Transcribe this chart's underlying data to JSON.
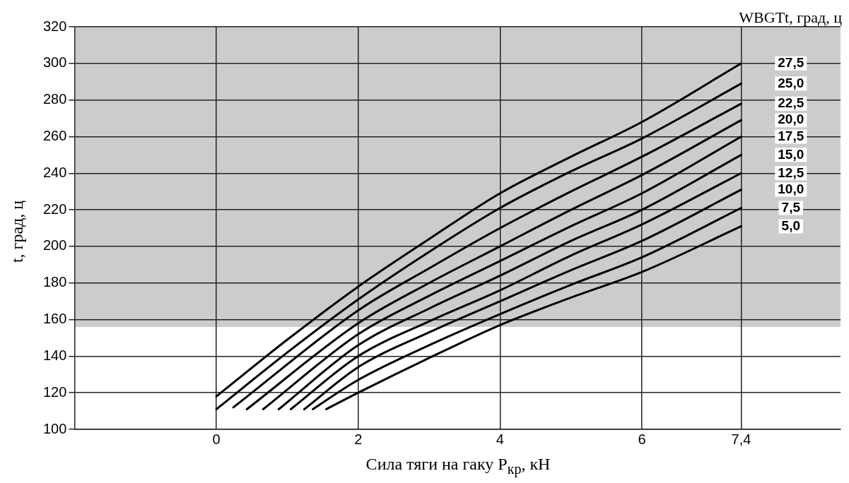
{
  "chart_data": {
    "type": "line",
    "legend_title": "WBGTt, град, ц",
    "xlabel": "Сила тяги на гаку P$_{кр}$, кН",
    "ylabel": "t, град, ц",
    "xlim": [
      -2,
      8.8
    ],
    "xticks": [
      0,
      2,
      4,
      6,
      {
        "value": 7.4,
        "label": "7,4"
      }
    ],
    "ylim": [
      100,
      320
    ],
    "yticks": [
      100,
      120,
      140,
      160,
      180,
      200,
      220,
      240,
      260,
      280,
      300,
      320
    ],
    "grid": true,
    "legend": false,
    "marker": "none",
    "line_style": "solid",
    "bands": [
      {
        "axis": "y",
        "from": 156,
        "to": 320,
        "color": "#cccccc"
      }
    ],
    "series": [
      {
        "name": "27,5",
        "color": "#000000",
        "x": [
          0,
          1,
          2,
          3,
          4,
          5,
          6,
          7.4
        ],
        "values": [
          118,
          149,
          178,
          204,
          229,
          249,
          268,
          300
        ]
      },
      {
        "name": "25,0",
        "color": "#000000",
        "x": [
          0,
          1,
          2,
          3,
          4,
          5,
          6,
          7.4
        ],
        "values": [
          111,
          142,
          171,
          197,
          221,
          241,
          259,
          289
        ]
      },
      {
        "name": "22,5",
        "color": "#000000",
        "x": [
          0.24,
          2,
          3,
          4,
          5,
          6,
          7.4
        ],
        "values": [
          112,
          165,
          188,
          210,
          230,
          249,
          278
        ]
      },
      {
        "name": "20,0",
        "color": "#000000",
        "x": [
          0.43,
          2,
          3,
          4,
          5,
          6,
          7.4
        ],
        "values": [
          111,
          158,
          180,
          200,
          220,
          239,
          269
        ]
      },
      {
        "name": "17,5",
        "color": "#000000",
        "x": [
          0.66,
          2,
          3,
          4,
          5,
          6,
          7.4
        ],
        "values": [
          111,
          152,
          173,
          192,
          211,
          229,
          260
        ]
      },
      {
        "name": "15,0",
        "color": "#000000",
        "x": [
          0.88,
          2,
          3,
          4,
          5,
          6,
          7.4
        ],
        "values": [
          111,
          146,
          166,
          184,
          203,
          220,
          250
        ]
      },
      {
        "name": "12,5",
        "color": "#000000",
        "x": [
          1.05,
          2,
          3,
          4,
          5,
          6,
          7.4
        ],
        "values": [
          111,
          140,
          159,
          176,
          195,
          212,
          240
        ]
      },
      {
        "name": "10,0",
        "color": "#000000",
        "x": [
          1.24,
          2,
          3,
          4,
          5,
          6,
          7.4
        ],
        "values": [
          111,
          134,
          153,
          170,
          187,
          203,
          231
        ]
      },
      {
        "name": "7,5",
        "color": "#000000",
        "x": [
          1.36,
          2,
          3,
          4,
          5,
          6,
          7.4
        ],
        "values": [
          111,
          127,
          146,
          163,
          179,
          194,
          221
        ]
      },
      {
        "name": "5,0",
        "color": "#000000",
        "x": [
          1.55,
          2,
          3,
          4,
          5,
          6,
          7.4
        ],
        "values": [
          111,
          120,
          139,
          157,
          172,
          186,
          211
        ]
      }
    ]
  }
}
